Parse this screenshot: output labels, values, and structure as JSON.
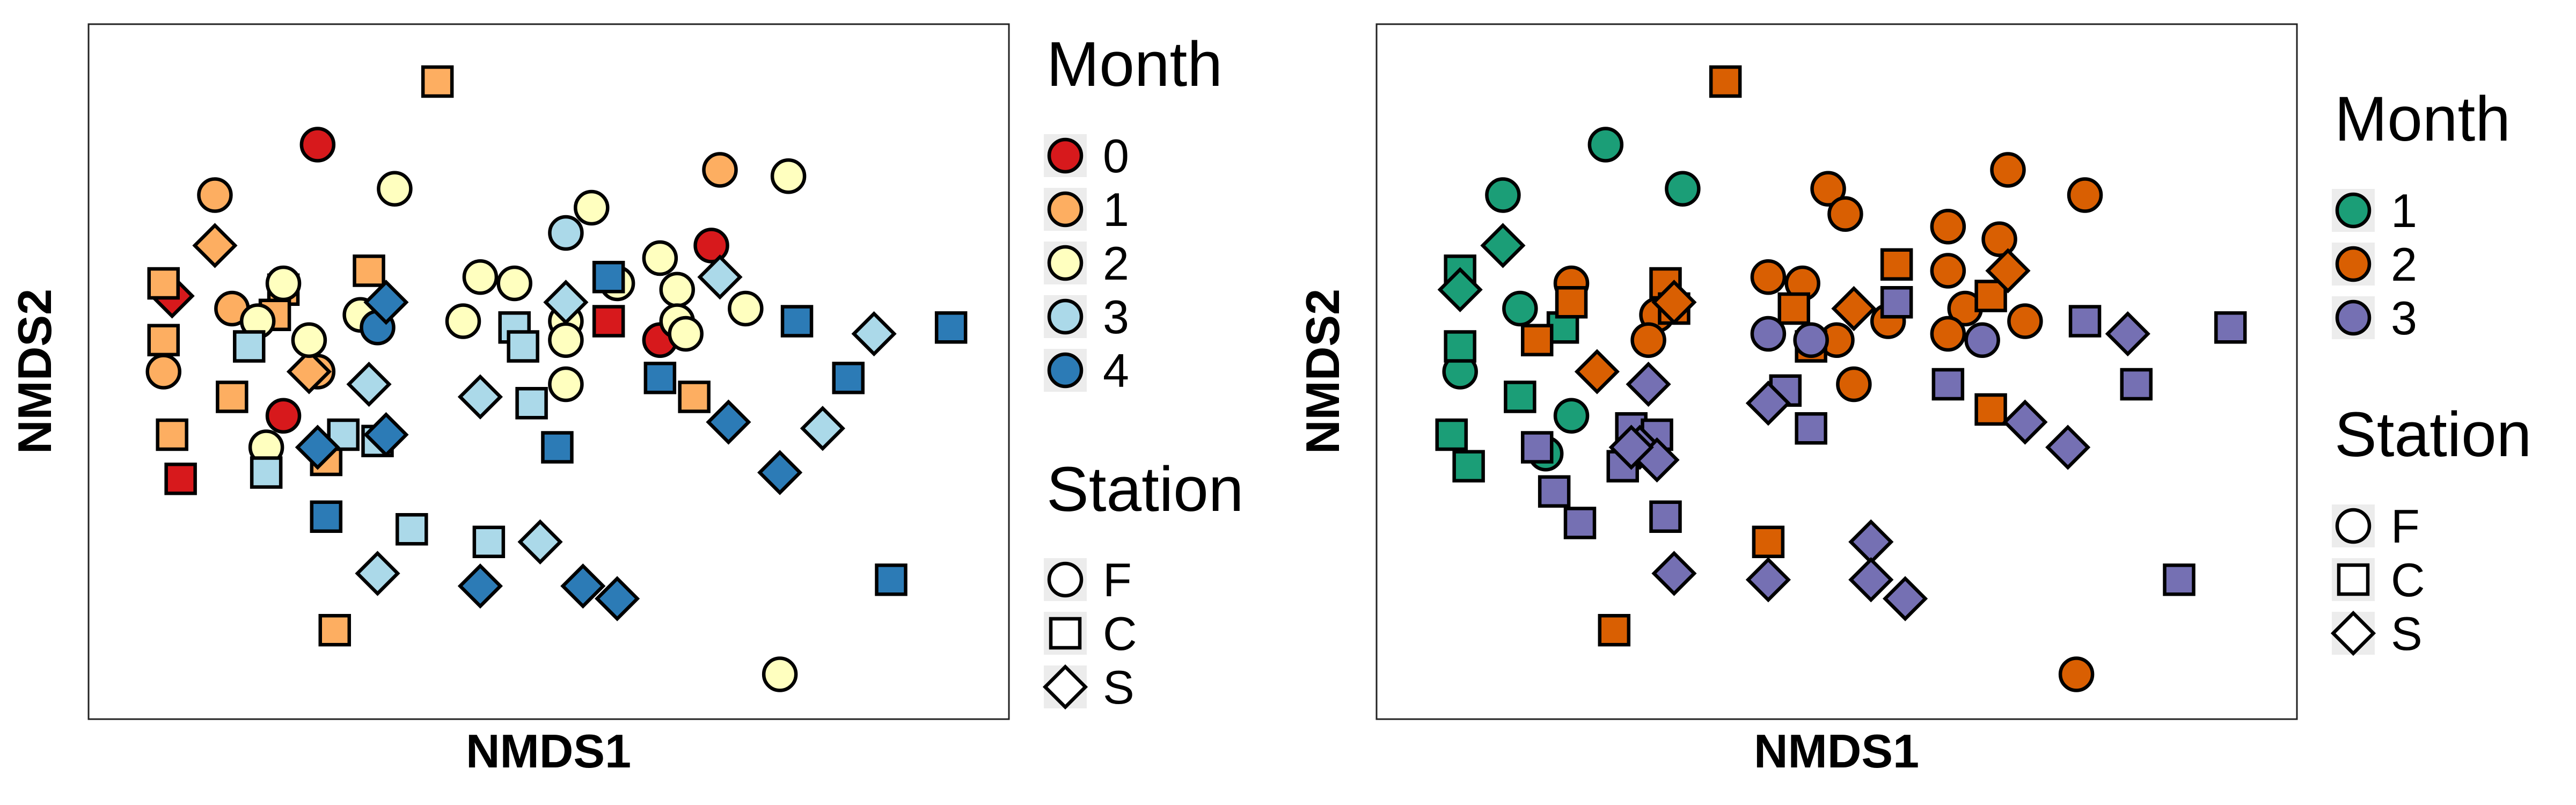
{
  "chart_data": [
    {
      "type": "scatter",
      "xlabel": "NMDS1",
      "ylabel": "NMDS2",
      "xlim": [
        0,
        100
      ],
      "ylim": [
        0,
        100
      ],
      "grid": false,
      "legend_placement": "right",
      "legend": {
        "color_title": "Month",
        "shape_title": "Station",
        "colors": [
          {
            "label": "0",
            "color": "#d7191c"
          },
          {
            "label": "1",
            "color": "#fdae61"
          },
          {
            "label": "2",
            "color": "#ffffbf"
          },
          {
            "label": "3",
            "color": "#abd9e9"
          },
          {
            "label": "4",
            "color": "#2c7bb6"
          }
        ],
        "shapes": [
          {
            "label": "F",
            "shape": "circle"
          },
          {
            "label": "C",
            "shape": "square"
          },
          {
            "label": "S",
            "shape": "diamond"
          }
        ]
      },
      "series": [
        {
          "month": "0",
          "station": "F",
          "points": [
            [
              23,
              86
            ],
            [
              69,
              70
            ],
            [
              63,
              55
            ]
          ]
        },
        {
          "month": "0",
          "station": "C",
          "points": [
            [
              7,
              33
            ],
            [
              57,
              58
            ]
          ]
        },
        {
          "month": "0",
          "station": "S",
          "points": [
            [
              6,
              62
            ]
          ]
        },
        {
          "month": "0",
          "station": "F",
          "points": [
            [
              19,
              43
            ]
          ]
        },
        {
          "month": "1",
          "station": "F",
          "points": [
            [
              11,
              78
            ],
            [
              13,
              60
            ],
            [
              5,
              50
            ],
            [
              70,
              82
            ],
            [
              23,
              50
            ]
          ]
        },
        {
          "month": "1",
          "station": "C",
          "points": [
            [
              37,
              96
            ],
            [
              5,
              64
            ],
            [
              19,
              63
            ],
            [
              18,
              59
            ],
            [
              5,
              55
            ],
            [
              6,
              40
            ],
            [
              13,
              46
            ],
            [
              29,
              66
            ],
            [
              24,
              36
            ],
            [
              67,
              46
            ],
            [
              25,
              9
            ]
          ]
        },
        {
          "month": "1",
          "station": "S",
          "points": [
            [
              11,
              70
            ],
            [
              22,
              50
            ]
          ]
        },
        {
          "month": "2",
          "station": "F",
          "points": [
            [
              19,
              64
            ],
            [
              32,
              79
            ],
            [
              16,
              58
            ],
            [
              28,
              59
            ],
            [
              55,
              76
            ],
            [
              42,
              65
            ],
            [
              46,
              64
            ],
            [
              63,
              68
            ],
            [
              65,
              63
            ],
            [
              58,
              64
            ],
            [
              65,
              58
            ],
            [
              73,
              60
            ],
            [
              22,
              55
            ],
            [
              40,
              58
            ],
            [
              52,
              58
            ],
            [
              52,
              55
            ],
            [
              52,
              48
            ],
            [
              66,
              56
            ],
            [
              78,
              81
            ],
            [
              17,
              38
            ],
            [
              77,
              2
            ]
          ]
        },
        {
          "month": "2",
          "station": "C",
          "points": []
        },
        {
          "month": "3",
          "station": "F",
          "points": [
            [
              52,
              72
            ]
          ]
        },
        {
          "month": "3",
          "station": "C",
          "points": [
            [
              15,
              54
            ],
            [
              46,
              57
            ],
            [
              47,
              54
            ],
            [
              48,
              45
            ],
            [
              26,
              40
            ],
            [
              30,
              39
            ],
            [
              17,
              34
            ],
            [
              34,
              25
            ],
            [
              43,
              23
            ]
          ]
        },
        {
          "month": "3",
          "station": "S",
          "points": [
            [
              52,
              61
            ],
            [
              70,
              65
            ],
            [
              29,
              48
            ],
            [
              42,
              46
            ],
            [
              82,
              41
            ],
            [
              88,
              56
            ],
            [
              49,
              23
            ],
            [
              30,
              18
            ]
          ]
        },
        {
          "month": "4",
          "station": "F",
          "points": [
            [
              30,
              57
            ]
          ]
        },
        {
          "month": "4",
          "station": "C",
          "points": [
            [
              57,
              65
            ],
            [
              79,
              58
            ],
            [
              63,
              49
            ],
            [
              85,
              49
            ],
            [
              51,
              38
            ],
            [
              24,
              27
            ],
            [
              97,
              57
            ],
            [
              90,
              17
            ]
          ]
        },
        {
          "month": "4",
          "station": "S",
          "points": [
            [
              31,
              61
            ],
            [
              23,
              38
            ],
            [
              31,
              40
            ],
            [
              71,
              42
            ],
            [
              77,
              34
            ],
            [
              42,
              16
            ],
            [
              54,
              16
            ],
            [
              58,
              14
            ]
          ]
        }
      ]
    },
    {
      "type": "scatter",
      "xlabel": "NMDS1",
      "ylabel": "NMDS2",
      "xlim": [
        0,
        100
      ],
      "ylim": [
        0,
        100
      ],
      "grid": false,
      "legend_placement": "right",
      "legend": {
        "color_title": "Month",
        "shape_title": "Station",
        "colors": [
          {
            "label": "1",
            "color": "#1b9e77"
          },
          {
            "label": "2",
            "color": "#d95f02"
          },
          {
            "label": "3",
            "color": "#7570b3"
          }
        ],
        "shapes": [
          {
            "label": "F",
            "shape": "circle"
          },
          {
            "label": "C",
            "shape": "square"
          },
          {
            "label": "S",
            "shape": "diamond"
          }
        ]
      },
      "series": [
        {
          "month": "1",
          "station": "F",
          "points": [
            [
              23,
              86
            ],
            [
              11,
              78
            ],
            [
              32,
              79
            ],
            [
              13,
              60
            ],
            [
              6,
              50
            ],
            [
              19,
              43
            ],
            [
              16,
              37
            ]
          ]
        },
        {
          "month": "1",
          "station": "C",
          "points": [
            [
              6,
              66
            ],
            [
              18,
              57
            ],
            [
              6,
              54
            ],
            [
              13,
              46
            ],
            [
              5,
              40
            ],
            [
              7,
              35
            ]
          ]
        },
        {
          "month": "1",
          "station": "S",
          "points": [
            [
              11,
              70
            ],
            [
              6,
              63
            ]
          ]
        },
        {
          "month": "2",
          "station": "F",
          "points": [
            [
              19,
              64
            ],
            [
              29,
              59
            ],
            [
              28,
              55
            ],
            [
              42,
              65
            ],
            [
              46,
              64
            ],
            [
              49,
              79
            ],
            [
              51,
              75
            ],
            [
              50,
              55
            ],
            [
              52,
              48
            ],
            [
              56,
              58
            ],
            [
              63,
              73
            ],
            [
              63,
              66
            ],
            [
              65,
              60
            ],
            [
              69,
              71
            ],
            [
              70,
              82
            ],
            [
              72,
              58
            ],
            [
              79,
              78
            ],
            [
              63,
              56
            ],
            [
              78,
              2
            ]
          ]
        },
        {
          "month": "2",
          "station": "C",
          "points": [
            [
              37,
              96
            ],
            [
              19,
              61
            ],
            [
              15,
              55
            ],
            [
              30,
              64
            ],
            [
              31,
              60
            ],
            [
              45,
              60
            ],
            [
              47,
              54
            ],
            [
              57,
              67
            ],
            [
              68,
              62
            ],
            [
              68,
              44
            ],
            [
              42,
              23
            ],
            [
              24,
              9
            ]
          ]
        },
        {
          "month": "2",
          "station": "S",
          "points": [
            [
              22,
              50
            ],
            [
              31,
              61
            ],
            [
              52,
              60
            ],
            [
              70,
              66
            ]
          ]
        },
        {
          "month": "3",
          "station": "F",
          "points": [
            [
              42,
              56
            ],
            [
              47,
              55
            ],
            [
              67,
              55
            ]
          ]
        },
        {
          "month": "3",
          "station": "C",
          "points": [
            [
              57,
              61
            ],
            [
              79,
              58
            ],
            [
              44,
              47
            ],
            [
              63,
              48
            ],
            [
              85,
              48
            ],
            [
              47,
              41
            ],
            [
              26,
              41
            ],
            [
              29,
              40
            ],
            [
              15,
              38
            ],
            [
              25,
              35
            ],
            [
              17,
              31
            ],
            [
              30,
              27
            ],
            [
              20,
              26
            ],
            [
              96,
              57
            ],
            [
              90,
              17
            ]
          ]
        },
        {
          "month": "3",
          "station": "S",
          "points": [
            [
              84,
              56
            ],
            [
              28,
              48
            ],
            [
              42,
              45
            ],
            [
              72,
              42
            ],
            [
              77,
              38
            ],
            [
              27,
              38
            ],
            [
              29,
              36
            ],
            [
              26,
              38
            ],
            [
              54,
              23
            ],
            [
              31,
              18
            ],
            [
              42,
              17
            ],
            [
              54,
              17
            ],
            [
              58,
              14
            ]
          ]
        }
      ]
    }
  ]
}
